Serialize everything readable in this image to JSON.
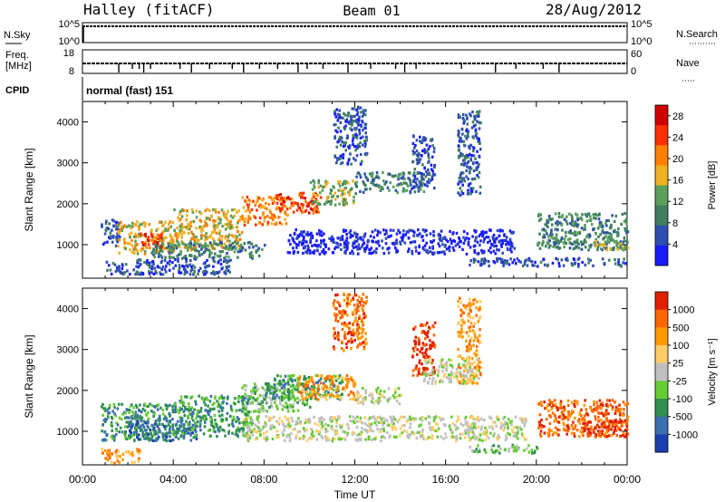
{
  "header": {
    "station": "Halley (fitACF)",
    "beam": "Beam 01",
    "date": "28/Aug/2012"
  },
  "status_panel": {
    "nsky_label": "N.Sky",
    "nsky_top_tick": "10^5",
    "nsky_bottom_tick": "10^0",
    "nsearch_label": "N.Search",
    "nsearch_top_tick": "10^5",
    "nsearch_bottom_tick": "10^0",
    "freq_label_top": "Freq.",
    "freq_label_bottom": "[MHz]",
    "freq_top_tick": "18",
    "freq_bottom_tick": "8",
    "nave_label": "Nave",
    "nave_top_tick": "60",
    "nave_bottom_tick": "0",
    "cpid_label": "CPID",
    "cpid_value": "normal (fast) 151"
  },
  "chart_data": [
    {
      "type": "heatmap",
      "panel": "power",
      "ylabel": "Slant Range [km]",
      "yticks": [
        1000,
        2000,
        3000,
        4000
      ],
      "ylim": [
        180,
        4500
      ],
      "xticks": [
        "00:00",
        "04:00",
        "08:00",
        "12:00",
        "16:00",
        "20:00",
        "00:00"
      ],
      "xlim_hours": [
        0,
        24
      ],
      "colorbar": {
        "label": "Power [dB]",
        "ticks": [
          "4",
          "8",
          "12",
          "16",
          "20",
          "24",
          "28"
        ],
        "range": [
          0,
          30
        ],
        "colors": [
          "#1a1aff",
          "#2f4fb0",
          "#3f7f60",
          "#5aa05a",
          "#f0b020",
          "#ff7f00",
          "#ff3000",
          "#d00000"
        ]
      },
      "regions": [
        {
          "t0": 0.8,
          "t1": 1.6,
          "r0": 1000,
          "r1": 1700,
          "level": 1
        },
        {
          "t0": 1.5,
          "t1": 4.0,
          "r0": 800,
          "r1": 1600,
          "level": 4
        },
        {
          "t0": 2.5,
          "t1": 3.5,
          "r0": 900,
          "r1": 1300,
          "level": 6
        },
        {
          "t0": 4.0,
          "t1": 7.0,
          "r0": 900,
          "r1": 1900,
          "level": 4
        },
        {
          "t0": 7.0,
          "t1": 9.0,
          "r0": 1500,
          "r1": 2200,
          "level": 5
        },
        {
          "t0": 8.5,
          "t1": 10.5,
          "r0": 1800,
          "r1": 2300,
          "level": 6
        },
        {
          "t0": 10.0,
          "t1": 12.0,
          "r0": 2000,
          "r1": 2600,
          "level": 3
        },
        {
          "t0": 1.0,
          "t1": 6.5,
          "r0": 300,
          "r1": 700,
          "level": 1
        },
        {
          "t0": 3.0,
          "t1": 8.0,
          "r0": 700,
          "r1": 1100,
          "level": 2
        },
        {
          "t0": 11.0,
          "t1": 12.5,
          "r0": 3000,
          "r1": 4400,
          "level": 1
        },
        {
          "t0": 12.0,
          "t1": 15.0,
          "r0": 2300,
          "r1": 2800,
          "level": 2
        },
        {
          "t0": 14.5,
          "t1": 15.5,
          "r0": 2400,
          "r1": 3700,
          "level": 1
        },
        {
          "t0": 16.5,
          "t1": 17.5,
          "r0": 2200,
          "r1": 4300,
          "level": 1
        },
        {
          "t0": 9.0,
          "t1": 19.0,
          "r0": 800,
          "r1": 1400,
          "level": 0
        },
        {
          "t0": 17.0,
          "t1": 24.0,
          "r0": 500,
          "r1": 700,
          "level": 1
        },
        {
          "t0": 20.0,
          "t1": 24.0,
          "r0": 900,
          "r1": 1800,
          "level": 2
        },
        {
          "t0": 22.5,
          "t1": 24.0,
          "r0": 900,
          "r1": 1200,
          "level": 3
        }
      ]
    },
    {
      "type": "heatmap",
      "panel": "velocity",
      "ylabel": "Slant Range [km]",
      "yticks": [
        1000,
        2000,
        3000,
        4000
      ],
      "ylim": [
        180,
        4500
      ],
      "xticks": [
        "00:00",
        "04:00",
        "08:00",
        "12:00",
        "16:00",
        "20:00",
        "00:00"
      ],
      "xlim_hours": [
        0,
        24
      ],
      "xlabel": "Time UT",
      "colorbar": {
        "label": "Velocity [m s⁻¹]",
        "ticks": [
          "1000",
          "500",
          "100",
          "25",
          "-25",
          "-100",
          "-500",
          "-1000"
        ],
        "colors": [
          "#1a3fb0",
          "#3a6fb0",
          "#2f8f4f",
          "#66cc33",
          "#c0c0c0",
          "#ffcc66",
          "#ff9900",
          "#ff6600",
          "#e02000"
        ]
      },
      "regions": [
        {
          "t0": 0.8,
          "t1": 4.0,
          "r0": 800,
          "r1": 1700,
          "level": 2
        },
        {
          "t0": 2.0,
          "t1": 5.0,
          "r0": 800,
          "r1": 1300,
          "level": 1
        },
        {
          "t0": 4.0,
          "t1": 7.5,
          "r0": 900,
          "r1": 1900,
          "level": 2
        },
        {
          "t0": 7.0,
          "t1": 10.0,
          "r0": 1500,
          "r1": 2200,
          "level": 3
        },
        {
          "t0": 8.0,
          "t1": 11.5,
          "r0": 1800,
          "r1": 2400,
          "level": 2
        },
        {
          "t0": 9.5,
          "t1": 12.0,
          "r0": 1800,
          "r1": 2400,
          "level": 6
        },
        {
          "t0": 11.0,
          "t1": 12.5,
          "r0": 3000,
          "r1": 4400,
          "level": 7
        },
        {
          "t0": 12.0,
          "t1": 14.0,
          "r0": 1700,
          "r1": 2100,
          "level": 4
        },
        {
          "t0": 14.5,
          "t1": 15.5,
          "r0": 2400,
          "r1": 3700,
          "level": 8
        },
        {
          "t0": 16.5,
          "t1": 17.5,
          "r0": 2200,
          "r1": 4300,
          "level": 6
        },
        {
          "t0": 15.0,
          "t1": 17.5,
          "r0": 2200,
          "r1": 2800,
          "level": 4
        },
        {
          "t0": 7.0,
          "t1": 19.5,
          "r0": 800,
          "r1": 1400,
          "level": 4
        },
        {
          "t0": 17.0,
          "t1": 20.0,
          "r0": 500,
          "r1": 700,
          "level": 3
        },
        {
          "t0": 20.0,
          "t1": 24.0,
          "r0": 900,
          "r1": 1800,
          "level": 7
        },
        {
          "t0": 22.0,
          "t1": 24.0,
          "r0": 900,
          "r1": 1300,
          "level": 8
        },
        {
          "t0": 0.8,
          "t1": 2.5,
          "r0": 250,
          "r1": 600,
          "level": 6
        }
      ]
    }
  ]
}
